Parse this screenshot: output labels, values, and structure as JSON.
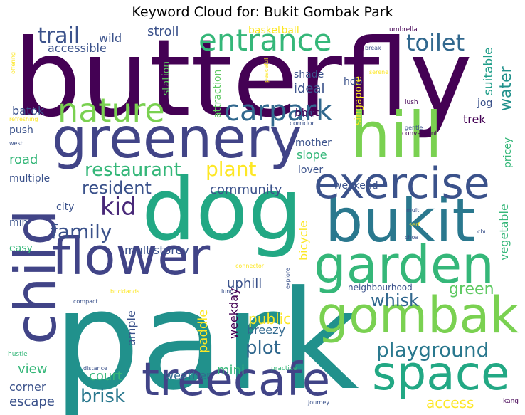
{
  "title": "Keyword Cloud for: Bukit Gombak Park",
  "words": [
    {
      "text": "park",
      "color": "#21918c"
    },
    {
      "text": "butterfly",
      "color": "#440154"
    },
    {
      "text": "dog",
      "color": "#22a884"
    },
    {
      "text": "greenery",
      "color": "#414487"
    },
    {
      "text": "hill",
      "color": "#7ad151"
    },
    {
      "text": "bukit",
      "color": "#2a788e"
    },
    {
      "text": "exercise",
      "color": "#3b528b"
    },
    {
      "text": "flower",
      "color": "#414487"
    },
    {
      "text": "child",
      "color": "#414487"
    },
    {
      "text": "garden",
      "color": "#35b779"
    },
    {
      "text": "gombak",
      "color": "#7ad151"
    },
    {
      "text": "space",
      "color": "#22a884"
    },
    {
      "text": "treecafe",
      "color": "#414487"
    },
    {
      "text": "nature",
      "color": "#7ad151"
    },
    {
      "text": "carpark",
      "color": "#31688e"
    },
    {
      "text": "entrance",
      "color": "#35b779"
    },
    {
      "text": "trail",
      "color": "#3b528b"
    },
    {
      "text": "toilet",
      "color": "#31688e"
    },
    {
      "text": "family",
      "color": "#3b528b"
    },
    {
      "text": "kid",
      "color": "#482878"
    },
    {
      "text": "plant",
      "color": "#fde725"
    },
    {
      "text": "restaurant",
      "color": "#35b779"
    },
    {
      "text": "resident",
      "color": "#3b528b"
    },
    {
      "text": "playground",
      "color": "#2a788e"
    },
    {
      "text": "plot",
      "color": "#31688e"
    },
    {
      "text": "brisk",
      "color": "#2a788e"
    },
    {
      "text": "water",
      "color": "#21918c"
    },
    {
      "text": "suitable",
      "color": "#1f9e89"
    },
    {
      "text": "green",
      "color": "#5ec962"
    },
    {
      "text": "whisk",
      "color": "#31688e"
    },
    {
      "text": "community",
      "color": "#3b528b"
    },
    {
      "text": "multistorey",
      "color": "#3b528b"
    },
    {
      "text": "uphill",
      "color": "#3b528b"
    },
    {
      "text": "public",
      "color": "#fde725"
    },
    {
      "text": "weather",
      "color": "#31688e"
    },
    {
      "text": "court",
      "color": "#35b779"
    },
    {
      "text": "mini",
      "color": "#35b779"
    },
    {
      "text": "access",
      "color": "#fde725"
    },
    {
      "text": "view",
      "color": "#35b779"
    },
    {
      "text": "escape",
      "color": "#3b528b"
    },
    {
      "text": "corner",
      "color": "#3b528b"
    },
    {
      "text": "breezy",
      "color": "#31688e"
    },
    {
      "text": "paddle",
      "color": "#fde725"
    },
    {
      "text": "weekday",
      "color": "#440154"
    },
    {
      "text": "ample",
      "color": "#3b528b"
    },
    {
      "text": "road",
      "color": "#35b779"
    },
    {
      "text": "batok",
      "color": "#3b528b"
    },
    {
      "text": "push",
      "color": "#3b528b"
    },
    {
      "text": "multiple",
      "color": "#3b528b"
    },
    {
      "text": "city",
      "color": "#3b528b"
    },
    {
      "text": "min",
      "color": "#3b528b"
    },
    {
      "text": "easy",
      "color": "#35b779"
    },
    {
      "text": "stroll",
      "color": "#3b528b"
    },
    {
      "text": "wild",
      "color": "#3b528b"
    },
    {
      "text": "accessible",
      "color": "#3b528b"
    },
    {
      "text": "basketball",
      "color": "#fde725"
    },
    {
      "text": "shade",
      "color": "#3b528b"
    },
    {
      "text": "ideal",
      "color": "#3b528b"
    },
    {
      "text": "hdb",
      "color": "#3b528b"
    },
    {
      "text": "mrt",
      "color": "#3b528b"
    },
    {
      "text": "jog",
      "color": "#3b528b"
    },
    {
      "text": "trek",
      "color": "#440154"
    },
    {
      "text": "bbdc",
      "color": "#440154"
    },
    {
      "text": "mother",
      "color": "#3b528b"
    },
    {
      "text": "slope",
      "color": "#35b779"
    },
    {
      "text": "lover",
      "color": "#3b528b"
    },
    {
      "text": "weekend",
      "color": "#3b528b"
    },
    {
      "text": "pricey",
      "color": "#35b779"
    },
    {
      "text": "vegetable",
      "color": "#35b779"
    },
    {
      "text": "bicycle",
      "color": "#fde725"
    },
    {
      "text": "singapore",
      "color": "#fde725"
    },
    {
      "text": "attraction",
      "color": "#5ec962"
    },
    {
      "text": "station",
      "color": "#5ec962"
    },
    {
      "text": "neighbourhood",
      "color": "#3b528b"
    },
    {
      "text": "umbrella",
      "color": "#440154"
    },
    {
      "text": "break",
      "color": "#3b528b"
    },
    {
      "text": "serene",
      "color": "#fde725"
    },
    {
      "text": "lush",
      "color": "#440154"
    },
    {
      "text": "gentle",
      "color": "#3b528b"
    },
    {
      "text": "convenient",
      "color": "#440154"
    },
    {
      "text": "corridor",
      "color": "#3b528b"
    },
    {
      "text": "peaceful",
      "color": "#fde725"
    },
    {
      "text": "offering",
      "color": "#fde725"
    },
    {
      "text": "refreshing",
      "color": "#fde725"
    },
    {
      "text": "west",
      "color": "#3b528b"
    },
    {
      "text": "multi",
      "color": "#3b528b"
    },
    {
      "text": "serf",
      "color": "#fde725"
    },
    {
      "text": "chu",
      "color": "#3b528b"
    },
    {
      "text": "choa",
      "color": "#3b528b"
    },
    {
      "text": "connector",
      "color": "#fde725"
    },
    {
      "text": "explore",
      "color": "#3b528b"
    },
    {
      "text": "lung",
      "color": "#3b528b"
    },
    {
      "text": "bricklands",
      "color": "#fde725"
    },
    {
      "text": "compact",
      "color": "#3b528b"
    },
    {
      "text": "hustle",
      "color": "#35b779"
    },
    {
      "text": "distance",
      "color": "#3b528b"
    },
    {
      "text": "practice",
      "color": "#35b779"
    },
    {
      "text": "journey",
      "color": "#3b528b"
    },
    {
      "text": "kang",
      "color": "#440154"
    }
  ]
}
